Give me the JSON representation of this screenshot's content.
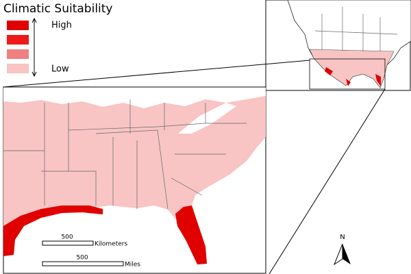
{
  "legend": {
    "title": "Climatic Suitability",
    "high": "High",
    "low": "Low"
  },
  "scale_bars": [
    {
      "value": "500",
      "unit": "Kilometers"
    },
    {
      "value": "500",
      "unit": "Miles"
    }
  ],
  "north_arrow": "N"
}
